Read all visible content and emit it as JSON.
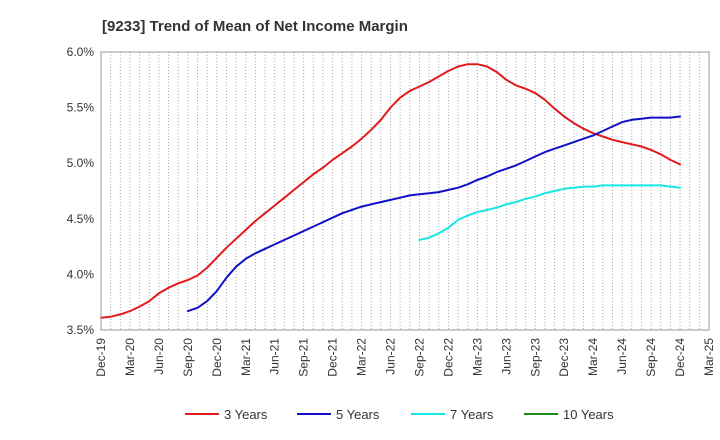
{
  "chart_data": {
    "type": "line",
    "title": "[9233]  Trend of Mean of Net Income Margin",
    "xlabel": "",
    "ylabel": "",
    "y_tick_labels": [
      "3.5%",
      "4.0%",
      "4.5%",
      "5.0%",
      "5.5%",
      "6.0%"
    ],
    "y_tick_values": [
      3.5,
      4.0,
      4.5,
      5.0,
      5.5,
      6.0
    ],
    "ylim": [
      3.5,
      6.0
    ],
    "x_tick_labels": [
      "Dec-19",
      "Mar-20",
      "Jun-20",
      "Sep-20",
      "Dec-20",
      "Mar-21",
      "Jun-21",
      "Sep-21",
      "Dec-21",
      "Mar-22",
      "Jun-22",
      "Sep-22",
      "Dec-22",
      "Mar-23",
      "Jun-23",
      "Sep-23",
      "Dec-23",
      "Mar-24",
      "Jun-24",
      "Sep-24",
      "Dec-24",
      "Mar-25"
    ],
    "xlim": [
      "Dec-19",
      "Mar-25"
    ],
    "grid": "vertical dotted, monthly",
    "legend_position": "bottom",
    "series": [
      {
        "name": "3 Years",
        "color": "#e01b1b",
        "x": [
          "Dec-19",
          "Jan-20",
          "Feb-20",
          "Mar-20",
          "Apr-20",
          "May-20",
          "Jun-20",
          "Jul-20",
          "Aug-20",
          "Sep-20",
          "Oct-20",
          "Nov-20",
          "Dec-20",
          "Jan-21",
          "Feb-21",
          "Mar-21",
          "Apr-21",
          "May-21",
          "Jun-21",
          "Jul-21",
          "Aug-21",
          "Sep-21",
          "Oct-21",
          "Nov-21",
          "Dec-21",
          "Jan-22",
          "Feb-22",
          "Mar-22",
          "Apr-22",
          "May-22",
          "Jun-22",
          "Jul-22",
          "Aug-22",
          "Sep-22",
          "Oct-22",
          "Nov-22",
          "Dec-22",
          "Jan-23",
          "Feb-23",
          "Mar-23",
          "Apr-23",
          "May-23",
          "Jun-23",
          "Jul-23",
          "Aug-23",
          "Sep-23",
          "Oct-23",
          "Nov-23",
          "Dec-23",
          "Jan-24",
          "Feb-24",
          "Mar-24",
          "Apr-24",
          "May-24",
          "Jun-24",
          "Jul-24",
          "Aug-24",
          "Sep-24",
          "Oct-24",
          "Nov-24",
          "Dec-24"
        ],
        "values": [
          3.61,
          3.62,
          3.64,
          3.67,
          3.71,
          3.76,
          3.83,
          3.88,
          3.92,
          3.95,
          3.99,
          4.06,
          4.15,
          4.24,
          4.32,
          4.4,
          4.48,
          4.55,
          4.62,
          4.69,
          4.76,
          4.83,
          4.9,
          4.96,
          5.03,
          5.09,
          5.15,
          5.22,
          5.3,
          5.39,
          5.5,
          5.59,
          5.65,
          5.69,
          5.73,
          5.78,
          5.83,
          5.87,
          5.89,
          5.89,
          5.87,
          5.82,
          5.75,
          5.7,
          5.67,
          5.63,
          5.57,
          5.49,
          5.42,
          5.36,
          5.31,
          5.27,
          5.24,
          5.21,
          5.19,
          5.17,
          5.15,
          5.12,
          5.08,
          5.03,
          4.99
        ]
      },
      {
        "name": "5 Years",
        "color": "#1010c8",
        "x": [
          "Sep-20",
          "Oct-20",
          "Nov-20",
          "Dec-20",
          "Jan-21",
          "Feb-21",
          "Mar-21",
          "Apr-21",
          "May-21",
          "Jun-21",
          "Jul-21",
          "Aug-21",
          "Sep-21",
          "Oct-21",
          "Nov-21",
          "Dec-21",
          "Jan-22",
          "Feb-22",
          "Mar-22",
          "Apr-22",
          "May-22",
          "Jun-22",
          "Jul-22",
          "Aug-22",
          "Sep-22",
          "Oct-22",
          "Nov-22",
          "Dec-22",
          "Jan-23",
          "Feb-23",
          "Mar-23",
          "Apr-23",
          "May-23",
          "Jun-23",
          "Jul-23",
          "Aug-23",
          "Sep-23",
          "Oct-23",
          "Nov-23",
          "Dec-23",
          "Jan-24",
          "Feb-24",
          "Mar-24",
          "Apr-24",
          "May-24",
          "Jun-24",
          "Jul-24",
          "Aug-24",
          "Sep-24",
          "Oct-24",
          "Nov-24",
          "Dec-24"
        ],
        "values": [
          3.67,
          3.7,
          3.76,
          3.85,
          3.97,
          4.07,
          4.14,
          4.19,
          4.23,
          4.27,
          4.31,
          4.35,
          4.39,
          4.43,
          4.47,
          4.51,
          4.55,
          4.58,
          4.61,
          4.63,
          4.65,
          4.67,
          4.69,
          4.71,
          4.72,
          4.73,
          4.74,
          4.76,
          4.78,
          4.81,
          4.85,
          4.88,
          4.92,
          4.95,
          4.98,
          5.02,
          5.06,
          5.1,
          5.13,
          5.16,
          5.19,
          5.22,
          5.25,
          5.29,
          5.33,
          5.37,
          5.39,
          5.4,
          5.41,
          5.41,
          5.41,
          5.42
        ]
      },
      {
        "name": "7 Years",
        "color": "#19e6e6",
        "x": [
          "Sep-22",
          "Oct-22",
          "Nov-22",
          "Dec-22",
          "Jan-23",
          "Feb-23",
          "Mar-23",
          "Apr-23",
          "May-23",
          "Jun-23",
          "Jul-23",
          "Aug-23",
          "Sep-23",
          "Oct-23",
          "Nov-23",
          "Dec-23",
          "Jan-24",
          "Feb-24",
          "Mar-24",
          "Apr-24",
          "May-24",
          "Jun-24",
          "Jul-24",
          "Aug-24",
          "Sep-24",
          "Oct-24",
          "Nov-24",
          "Dec-24"
        ],
        "values": [
          4.31,
          4.33,
          4.37,
          4.42,
          4.49,
          4.53,
          4.56,
          4.58,
          4.6,
          4.63,
          4.65,
          4.68,
          4.7,
          4.73,
          4.75,
          4.77,
          4.78,
          4.79,
          4.79,
          4.8,
          4.8,
          4.8,
          4.8,
          4.8,
          4.8,
          4.8,
          4.79,
          4.78
        ]
      },
      {
        "name": "10 Years",
        "color": "#1a8a1a",
        "x": [],
        "values": []
      }
    ]
  }
}
